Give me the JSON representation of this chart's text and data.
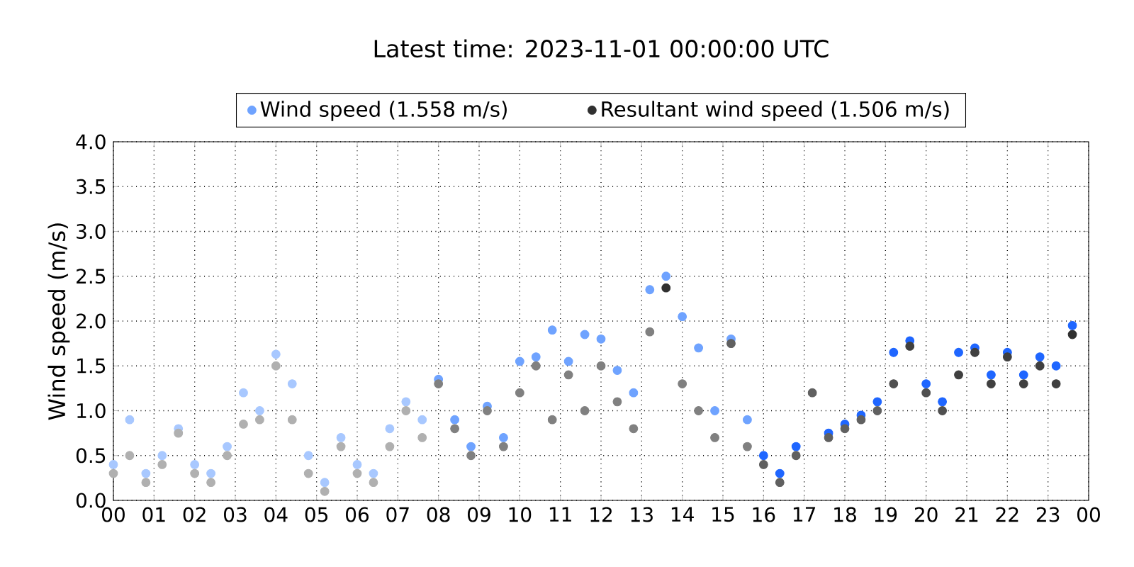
{
  "chart_data": {
    "type": "scatter",
    "title": "Latest time: 2023-11-01 00:00:00 UTC",
    "ylabel": "Wind speed (m/s)",
    "x": [
      0,
      0.4,
      0.8,
      1.2,
      1.6,
      2,
      2.4,
      2.8,
      3.2,
      3.6,
      4,
      4.4,
      4.8,
      5.2,
      5.6,
      6,
      6.4,
      6.8,
      7.2,
      7.6,
      8,
      8.4,
      8.8,
      9.2,
      9.6,
      10,
      10.4,
      10.8,
      11.2,
      11.6,
      12,
      12.4,
      12.8,
      13.2,
      13.6,
      14,
      14.4,
      14.8,
      15.2,
      15.6,
      16,
      16.4,
      16.8,
      17.2,
      17.6,
      18,
      18.4,
      18.8,
      19.2,
      19.6,
      20,
      20.4,
      20.8,
      21.2,
      21.6,
      22,
      22.4,
      22.8,
      23.2,
      23.6
    ],
    "series": [
      {
        "name": "Wind speed (1.558 m/s)",
        "color": "#6fa3ff",
        "values": [
          0.4,
          0.9,
          0.3,
          0.5,
          0.8,
          0.4,
          0.3,
          0.6,
          1.2,
          1.0,
          1.63,
          1.3,
          0.5,
          0.2,
          0.7,
          0.4,
          0.3,
          0.8,
          1.1,
          0.9,
          1.35,
          0.9,
          0.6,
          1.05,
          0.7,
          1.55,
          1.6,
          1.9,
          1.55,
          1.85,
          1.8,
          1.45,
          1.2,
          2.35,
          2.5,
          2.05,
          1.7,
          1.0,
          1.8,
          0.9,
          0.5,
          0.3,
          0.6,
          null,
          0.75,
          0.85,
          0.95,
          1.1,
          1.65,
          1.78,
          1.3,
          1.1,
          1.65,
          1.7,
          1.4,
          1.65,
          1.4,
          1.6,
          1.5,
          1.95
        ],
        "colors": [
          "#a8c8ff",
          "#a8c8ff",
          "#a8c8ff",
          "#a8c8ff",
          "#a8c8ff",
          "#a8c8ff",
          "#a8c8ff",
          "#a8c8ff",
          "#a8c8ff",
          "#a8c8ff",
          "#a8c8ff",
          "#a8c8ff",
          "#a8c8ff",
          "#a8c8ff",
          "#a8c8ff",
          "#a8c8ff",
          "#a8c8ff",
          "#a8c8ff",
          "#a8c8ff",
          "#a8c8ff",
          "#6fa3ff",
          "#6fa3ff",
          "#6fa3ff",
          "#6fa3ff",
          "#6fa3ff",
          "#6fa3ff",
          "#6fa3ff",
          "#6fa3ff",
          "#6fa3ff",
          "#6fa3ff",
          "#6fa3ff",
          "#6fa3ff",
          "#6fa3ff",
          "#6fa3ff",
          "#6fa3ff",
          "#6fa3ff",
          "#6fa3ff",
          "#6fa3ff",
          "#6fa3ff",
          "#6fa3ff",
          "#1f66ff",
          "#1f66ff",
          "#1f66ff",
          "#1f66ff",
          "#1f66ff",
          "#1f66ff",
          "#1f66ff",
          "#1f66ff",
          "#1f66ff",
          "#1f66ff",
          "#1f66ff",
          "#1f66ff",
          "#1f66ff",
          "#1f66ff",
          "#1f66ff",
          "#1f66ff",
          "#1f66ff",
          "#1f66ff",
          "#1f66ff",
          "#1f66ff"
        ]
      },
      {
        "name": "Resultant wind speed (1.506 m/s)",
        "color": "#303030",
        "values": [
          0.3,
          0.5,
          0.2,
          0.4,
          0.75,
          0.3,
          0.2,
          0.5,
          0.85,
          0.9,
          1.5,
          0.9,
          0.3,
          0.1,
          0.6,
          0.3,
          0.2,
          0.6,
          1.0,
          0.7,
          1.3,
          0.8,
          0.5,
          1.0,
          0.6,
          1.2,
          1.5,
          0.9,
          1.4,
          1.0,
          1.5,
          1.1,
          0.8,
          1.88,
          2.37,
          1.3,
          1.0,
          0.7,
          1.75,
          0.6,
          0.4,
          0.2,
          0.5,
          1.2,
          0.7,
          0.8,
          0.9,
          1.0,
          1.3,
          1.72,
          1.2,
          1.0,
          1.4,
          1.65,
          1.3,
          1.6,
          1.3,
          1.5,
          1.3,
          1.85
        ],
        "colors": [
          "#b0b0b0",
          "#b0b0b0",
          "#b0b0b0",
          "#b0b0b0",
          "#b0b0b0",
          "#b0b0b0",
          "#b0b0b0",
          "#b0b0b0",
          "#b0b0b0",
          "#b0b0b0",
          "#b0b0b0",
          "#b0b0b0",
          "#b0b0b0",
          "#b0b0b0",
          "#b0b0b0",
          "#b0b0b0",
          "#b0b0b0",
          "#b0b0b0",
          "#b0b0b0",
          "#b0b0b0",
          "#808080",
          "#808080",
          "#808080",
          "#808080",
          "#808080",
          "#808080",
          "#808080",
          "#808080",
          "#808080",
          "#808080",
          "#808080",
          "#808080",
          "#808080",
          "#808080",
          "#303030",
          "#808080",
          "#808080",
          "#808080",
          "#606060",
          "#808080",
          "#606060",
          "#606060",
          "#606060",
          "#606060",
          "#606060",
          "#606060",
          "#606060",
          "#606060",
          "#505050",
          "#404040",
          "#505050",
          "#505050",
          "#404040",
          "#404040",
          "#404040",
          "#404040",
          "#404040",
          "#404040",
          "#404040",
          "#303030"
        ]
      }
    ],
    "xlim": [
      0,
      24
    ],
    "xticks": [
      {
        "value": 0,
        "label": "00"
      },
      {
        "value": 1,
        "label": "01"
      },
      {
        "value": 2,
        "label": "02"
      },
      {
        "value": 3,
        "label": "03"
      },
      {
        "value": 4,
        "label": "04"
      },
      {
        "value": 5,
        "label": "05"
      },
      {
        "value": 6,
        "label": "06"
      },
      {
        "value": 7,
        "label": "07"
      },
      {
        "value": 8,
        "label": "08"
      },
      {
        "value": 9,
        "label": "09"
      },
      {
        "value": 10,
        "label": "10"
      },
      {
        "value": 11,
        "label": "11"
      },
      {
        "value": 12,
        "label": "12"
      },
      {
        "value": 13,
        "label": "13"
      },
      {
        "value": 14,
        "label": "14"
      },
      {
        "value": 15,
        "label": "15"
      },
      {
        "value": 16,
        "label": "16"
      },
      {
        "value": 17,
        "label": "17"
      },
      {
        "value": 18,
        "label": "18"
      },
      {
        "value": 19,
        "label": "19"
      },
      {
        "value": 20,
        "label": "20"
      },
      {
        "value": 21,
        "label": "21"
      },
      {
        "value": 22,
        "label": "22"
      },
      {
        "value": 23,
        "label": "23"
      },
      {
        "value": 24,
        "label": "00"
      }
    ],
    "ylim": [
      0,
      4
    ],
    "yticks": [
      {
        "value": 0,
        "label": "0.0"
      },
      {
        "value": 0.5,
        "label": "0.5"
      },
      {
        "value": 1,
        "label": "1.0"
      },
      {
        "value": 1.5,
        "label": "1.5"
      },
      {
        "value": 2,
        "label": "2.0"
      },
      {
        "value": 2.5,
        "label": "2.5"
      },
      {
        "value": 3,
        "label": "3.0"
      },
      {
        "value": 3.5,
        "label": "3.5"
      },
      {
        "value": 4,
        "label": "4.0"
      }
    ],
    "grid": true,
    "legend": "top"
  }
}
